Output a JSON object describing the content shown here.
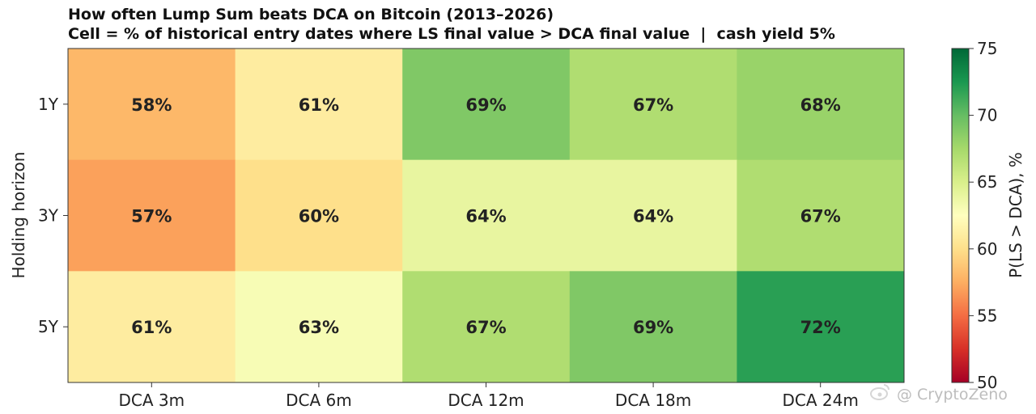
{
  "chart_data": {
    "type": "heatmap",
    "title": "How often Lump Sum beats DCA on Bitcoin (2013–2026)",
    "subtitle": "Cell = % of historical entry dates where LS final value > DCA final value  |  cash yield 5%",
    "xlabel": "",
    "ylabel": "Holding horizon",
    "x_categories": [
      "DCA 3m",
      "DCA 6m",
      "DCA 12m",
      "DCA 18m",
      "DCA 24m"
    ],
    "y_categories": [
      "1Y",
      "3Y",
      "5Y"
    ],
    "values": [
      [
        58,
        61,
        69,
        67,
        68
      ],
      [
        57,
        60,
        64,
        64,
        67
      ],
      [
        61,
        63,
        67,
        69,
        72
      ]
    ],
    "labels": [
      [
        "58%",
        "61%",
        "69%",
        "67%",
        "68%"
      ],
      [
        "57%",
        "60%",
        "64%",
        "64%",
        "67%"
      ],
      [
        "61%",
        "63%",
        "67%",
        "69%",
        "72%"
      ]
    ],
    "colorbar": {
      "label": "P(LS > DCA), %",
      "range": [
        50,
        75
      ],
      "ticks": [
        50,
        55,
        60,
        65,
        70,
        75
      ],
      "tick_labels": [
        "50",
        "55",
        "60",
        "65",
        "70",
        "75"
      ],
      "colormap": "RdYlGn",
      "stops": [
        "#a50026",
        "#d73027",
        "#f46d43",
        "#fdae61",
        "#fee08b",
        "#ffffbf",
        "#d9ef8b",
        "#a6d96a",
        "#66bd63",
        "#1a9850",
        "#006837"
      ]
    }
  },
  "watermark": "@ CryptoZeno"
}
